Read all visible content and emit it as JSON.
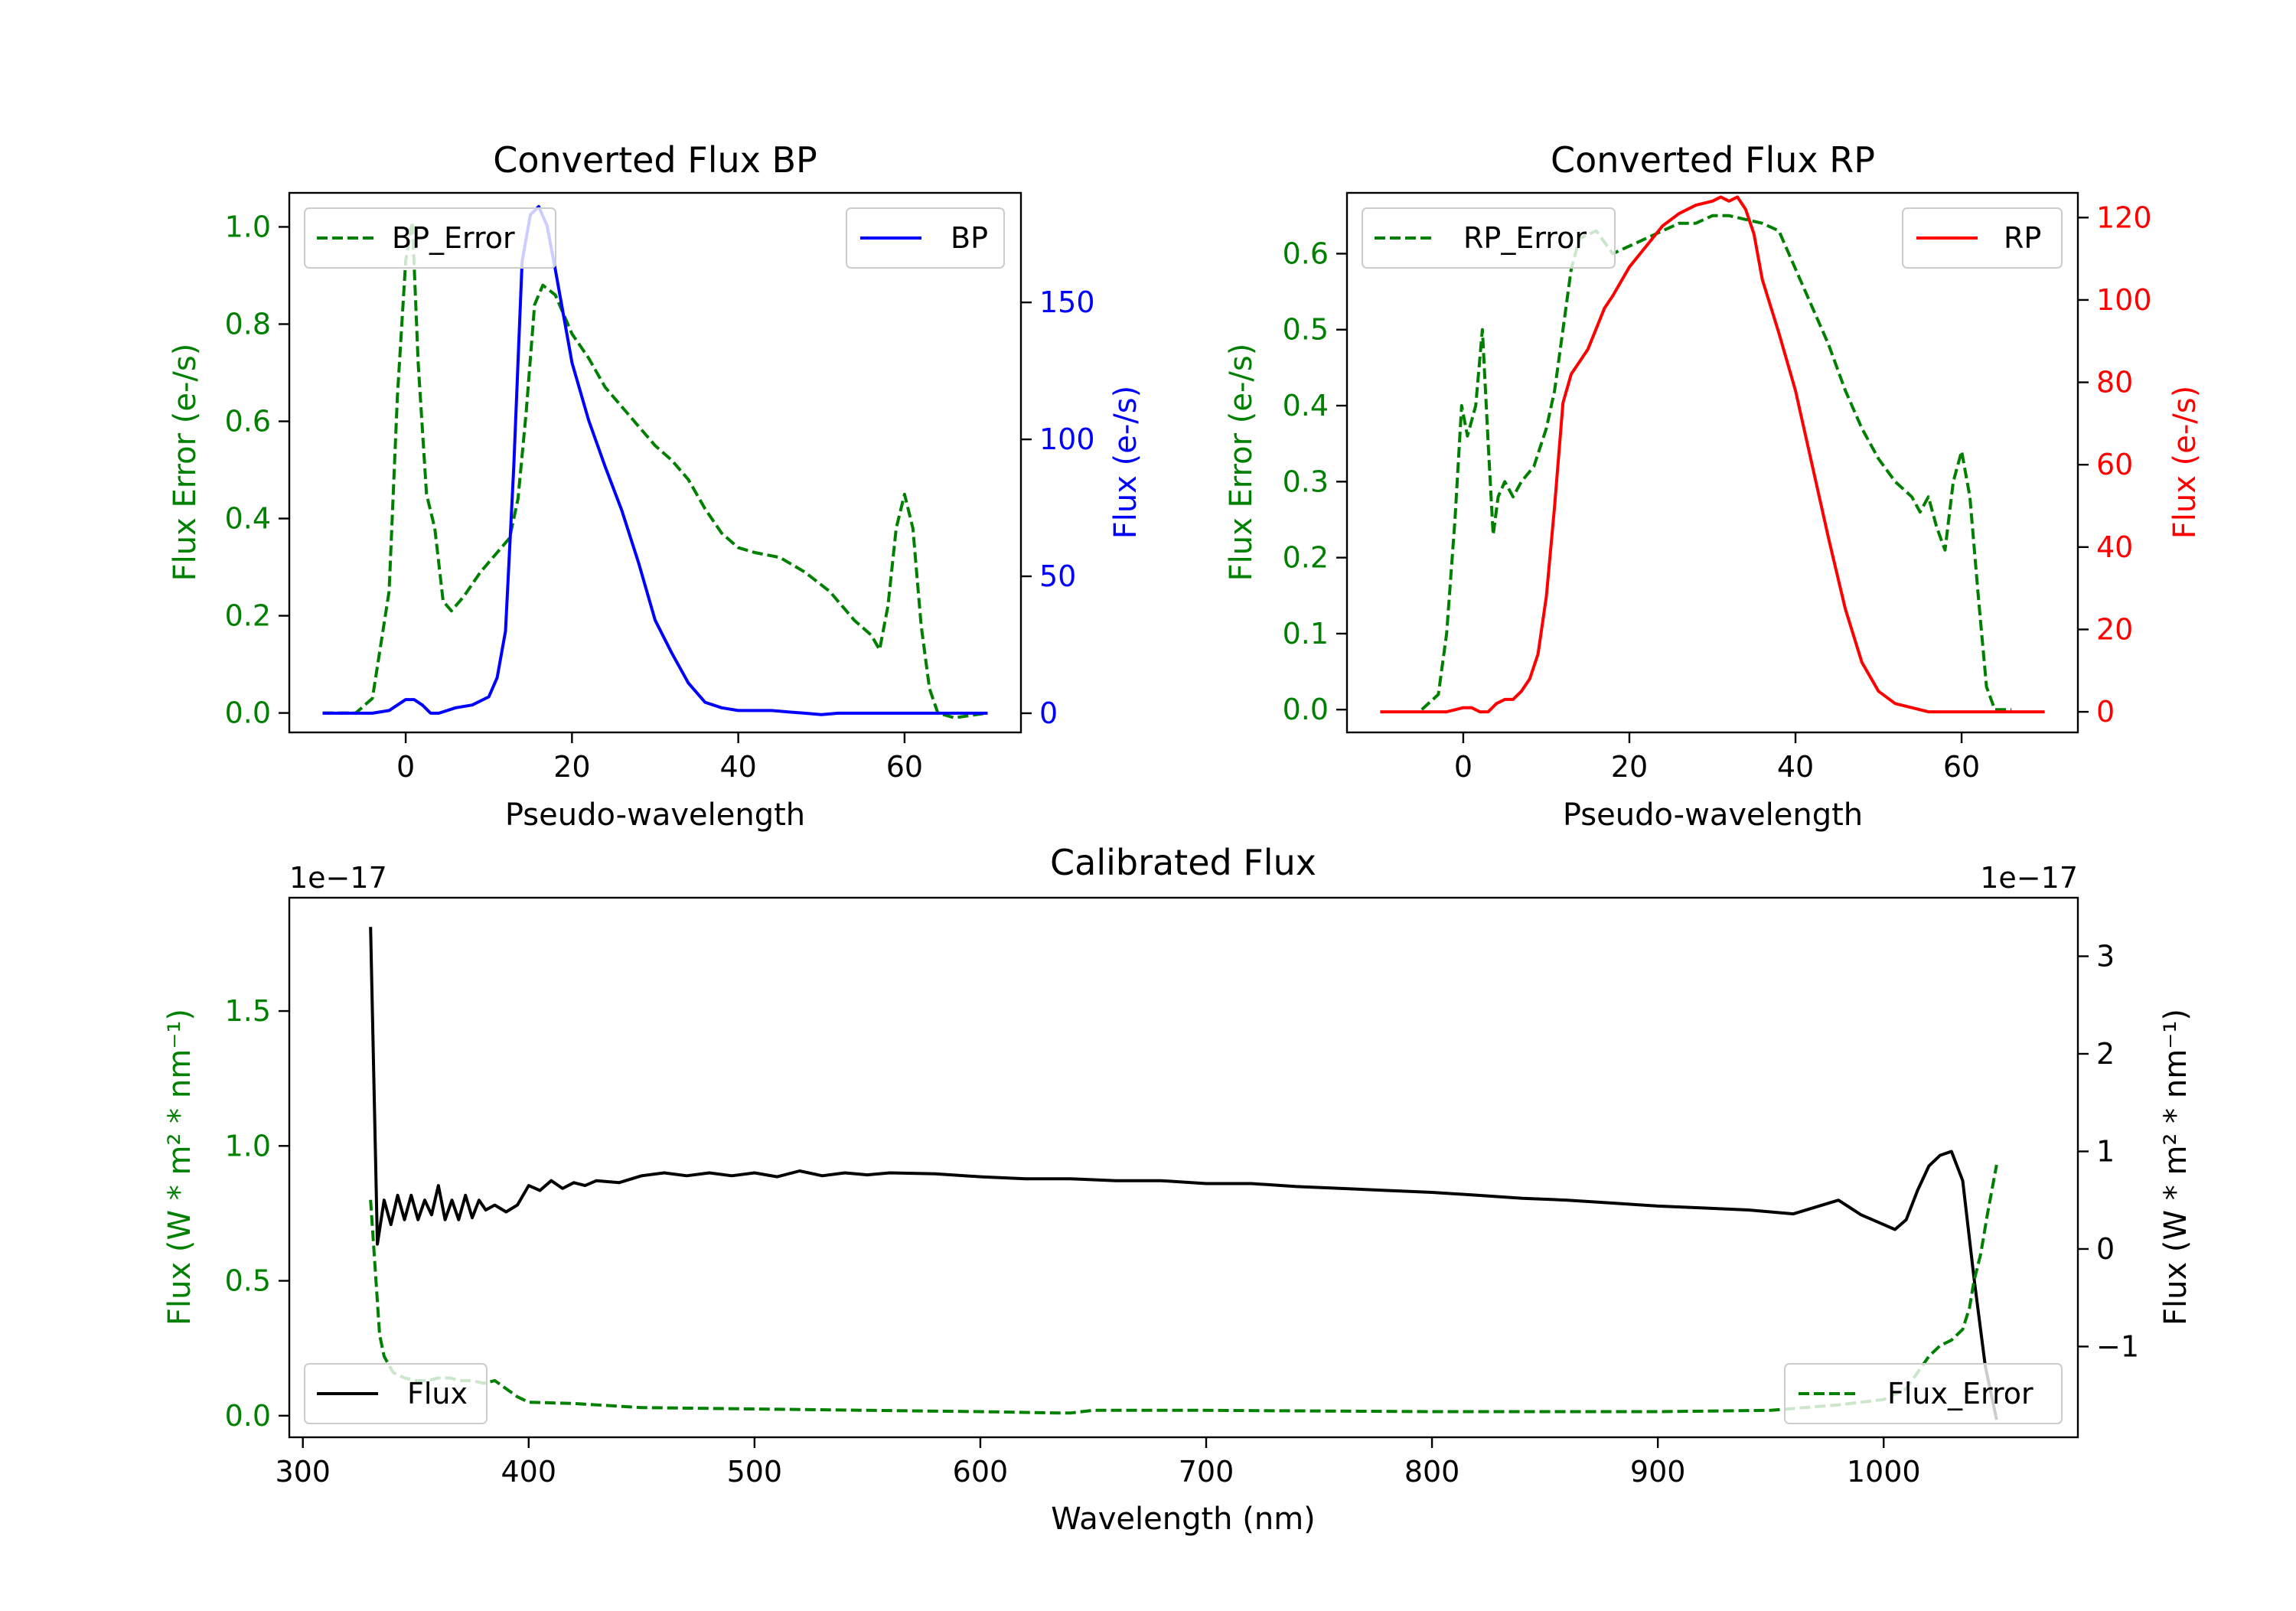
{
  "colors": {
    "green": "#008000",
    "blue": "#0000ff",
    "red": "#ff0000",
    "black": "#000000"
  },
  "chart_data": [
    {
      "type": "line",
      "title": "Converted Flux BP",
      "xlabel": "Pseudo-wavelength",
      "xlim": [
        -14,
        74
      ],
      "xticks": [
        0,
        20,
        40,
        60
      ],
      "left_axis": {
        "label": "Flux Error (e-/s)",
        "color": "green",
        "ylim": [
          -0.04,
          1.07
        ],
        "ticks": [
          0.0,
          0.2,
          0.4,
          0.6,
          0.8,
          1.0
        ]
      },
      "right_axis": {
        "label": "Flux (e-/s)",
        "color": "blue",
        "ylim": [
          -7,
          190
        ],
        "ticks": [
          0,
          50,
          100,
          150
        ]
      },
      "series": [
        {
          "name": "BP_Error",
          "axis": "left",
          "style": "dashed",
          "color": "green",
          "x": [
            -10,
            -6,
            -4,
            -2,
            -1,
            0,
            0.8,
            1.5,
            2.5,
            3.5,
            4.5,
            5.5,
            7,
            9,
            11,
            12.5,
            13.5,
            14.5,
            15.5,
            16.5,
            18,
            20,
            22,
            24,
            26,
            28,
            30,
            32,
            34,
            36,
            38,
            40,
            42,
            45,
            48,
            51,
            54,
            56,
            57,
            58,
            59,
            60,
            61,
            62,
            63,
            64,
            66,
            70
          ],
          "values": [
            0.0,
            0.0,
            0.03,
            0.25,
            0.65,
            0.93,
            1.01,
            0.72,
            0.45,
            0.38,
            0.23,
            0.21,
            0.24,
            0.29,
            0.33,
            0.36,
            0.44,
            0.62,
            0.84,
            0.88,
            0.86,
            0.78,
            0.73,
            0.67,
            0.63,
            0.59,
            0.55,
            0.52,
            0.48,
            0.42,
            0.37,
            0.34,
            0.33,
            0.32,
            0.29,
            0.25,
            0.19,
            0.16,
            0.13,
            0.22,
            0.38,
            0.45,
            0.38,
            0.18,
            0.05,
            0.0,
            -0.01,
            0.0
          ]
        },
        {
          "name": "BP",
          "axis": "right",
          "style": "solid",
          "color": "blue",
          "x": [
            -10,
            -4,
            -2,
            0,
            1,
            2,
            3,
            4,
            6,
            8,
            10,
            11,
            12,
            13,
            14,
            15,
            16,
            17,
            18,
            19,
            20,
            22,
            24,
            26,
            28,
            30,
            32,
            34,
            36,
            38,
            40,
            42,
            44,
            46,
            48,
            50,
            52,
            55,
            58,
            60,
            62,
            66,
            70
          ],
          "values": [
            0,
            0,
            1,
            5,
            5,
            3,
            0,
            0,
            2,
            3,
            6,
            13,
            30,
            90,
            165,
            182,
            185,
            178,
            162,
            145,
            128,
            107,
            90,
            74,
            55,
            34,
            22,
            11,
            4,
            2,
            1,
            1,
            1,
            0.5,
            0,
            -0.5,
            0,
            0,
            0,
            0,
            0,
            0,
            0
          ]
        }
      ],
      "legends": [
        {
          "label": "BP_Error",
          "location": "upper left"
        },
        {
          "label": "BP",
          "location": "upper right"
        }
      ]
    },
    {
      "type": "line",
      "title": "Converted Flux RP",
      "xlabel": "Pseudo-wavelength",
      "xlim": [
        -14,
        74
      ],
      "xticks": [
        0,
        20,
        40,
        60
      ],
      "left_axis": {
        "label": "Flux Error (e-/s)",
        "color": "green",
        "ylim": [
          -0.03,
          0.68
        ],
        "ticks": [
          0.0,
          0.1,
          0.2,
          0.3,
          0.4,
          0.5,
          0.6
        ]
      },
      "right_axis": {
        "label": "Flux (e-/s)",
        "color": "red",
        "ylim": [
          -5,
          126
        ],
        "ticks": [
          0,
          20,
          40,
          60,
          80,
          100,
          120
        ]
      },
      "series": [
        {
          "name": "RP_Error",
          "axis": "left",
          "style": "dashed",
          "color": "green",
          "x": [
            -5,
            -3,
            -2,
            -1,
            -0.2,
            0.5,
            1,
            1.5,
            2.3,
            3,
            3.6,
            4.2,
            5,
            6,
            7,
            8.5,
            10,
            11,
            12,
            13,
            14,
            16,
            18,
            20,
            22,
            24,
            26,
            28,
            30,
            32,
            34,
            36,
            38,
            40,
            42,
            44,
            46,
            48,
            50,
            52,
            54,
            55,
            56,
            57,
            58,
            59,
            60,
            61,
            62,
            63,
            64,
            66
          ],
          "values": [
            0.0,
            0.02,
            0.1,
            0.25,
            0.4,
            0.36,
            0.38,
            0.4,
            0.5,
            0.35,
            0.23,
            0.28,
            0.3,
            0.28,
            0.3,
            0.32,
            0.37,
            0.42,
            0.5,
            0.58,
            0.62,
            0.63,
            0.6,
            0.61,
            0.62,
            0.63,
            0.64,
            0.64,
            0.65,
            0.65,
            0.645,
            0.64,
            0.63,
            0.58,
            0.53,
            0.48,
            0.42,
            0.37,
            0.33,
            0.3,
            0.28,
            0.26,
            0.28,
            0.24,
            0.21,
            0.3,
            0.34,
            0.28,
            0.15,
            0.03,
            0.0,
            0.0
          ]
        },
        {
          "name": "RP",
          "axis": "right",
          "style": "solid",
          "color": "red",
          "x": [
            -10,
            -4,
            -2,
            0,
            1,
            2,
            3,
            4,
            5,
            6,
            7,
            8,
            9,
            10,
            11,
            12,
            13,
            14,
            15,
            16,
            17,
            18,
            20,
            22,
            24,
            26,
            28,
            30,
            31,
            32,
            33,
            34,
            35,
            36,
            38,
            40,
            42,
            44,
            46,
            48,
            50,
            52,
            54,
            56,
            60,
            64,
            70
          ],
          "values": [
            0,
            0,
            0,
            1,
            1,
            0,
            0,
            2,
            3,
            3,
            5,
            8,
            14,
            28,
            50,
            75,
            82,
            85,
            88,
            93,
            98,
            101,
            108,
            113,
            118,
            121,
            123,
            124,
            125,
            124,
            125,
            122,
            116,
            105,
            92,
            78,
            60,
            42,
            25,
            12,
            5,
            2,
            1,
            0,
            0,
            0,
            0
          ]
        }
      ],
      "legends": [
        {
          "label": "RP_Error",
          "location": "upper left"
        },
        {
          "label": "RP",
          "location": "upper right"
        }
      ]
    },
    {
      "type": "line",
      "title": "Calibrated Flux",
      "xlabel": "Wavelength (nm)",
      "xlim": [
        294,
        1086
      ],
      "xticks": [
        300,
        400,
        500,
        600,
        700,
        800,
        900,
        1000
      ],
      "left_axis": {
        "label": "Flux (W * m² * nm⁻¹)",
        "color": "green",
        "ylim": [
          -0.08,
          1.92
        ],
        "ticks": [
          0.0,
          0.5,
          1.0,
          1.5
        ],
        "tick_labels": [
          "0.0",
          "0.5",
          "1.0",
          "1.5"
        ],
        "offset_text": "1e−17"
      },
      "right_axis": {
        "label": "Flux (W * m² * nm⁻¹)",
        "color": "black",
        "ylim": [
          -1.93,
          3.6
        ],
        "ticks": [
          -1,
          0,
          1,
          2,
          3
        ],
        "tick_labels": [
          "−1",
          "0",
          "1",
          "2",
          "3"
        ],
        "offset_text": "1e−17"
      },
      "series": [
        {
          "name": "Flux",
          "axis": "right",
          "style": "solid",
          "color": "black",
          "x": [
            330,
            333,
            336,
            339,
            342,
            345,
            348,
            351,
            354,
            357,
            360,
            363,
            366,
            369,
            372,
            375,
            378,
            381,
            385,
            390,
            395,
            400,
            405,
            410,
            415,
            420,
            425,
            430,
            440,
            450,
            460,
            470,
            480,
            490,
            500,
            510,
            520,
            530,
            540,
            550,
            560,
            580,
            600,
            620,
            640,
            660,
            680,
            700,
            720,
            740,
            760,
            780,
            800,
            820,
            840,
            860,
            880,
            900,
            920,
            940,
            960,
            980,
            990,
            1000,
            1005,
            1010,
            1015,
            1020,
            1025,
            1030,
            1035,
            1040,
            1045,
            1050
          ],
          "values": [
            3.3,
            0.05,
            0.5,
            0.25,
            0.55,
            0.3,
            0.55,
            0.3,
            0.5,
            0.35,
            0.65,
            0.3,
            0.5,
            0.3,
            0.55,
            0.32,
            0.5,
            0.4,
            0.45,
            0.38,
            0.45,
            0.65,
            0.6,
            0.7,
            0.62,
            0.68,
            0.65,
            0.7,
            0.68,
            0.75,
            0.78,
            0.75,
            0.78,
            0.75,
            0.78,
            0.74,
            0.8,
            0.75,
            0.78,
            0.76,
            0.78,
            0.77,
            0.74,
            0.72,
            0.72,
            0.7,
            0.7,
            0.67,
            0.67,
            0.64,
            0.62,
            0.6,
            0.58,
            0.55,
            0.52,
            0.5,
            0.47,
            0.44,
            0.42,
            0.4,
            0.36,
            0.5,
            0.35,
            0.25,
            0.2,
            0.3,
            0.6,
            0.85,
            0.96,
            1.0,
            0.7,
            -0.3,
            -1.2,
            -1.75
          ]
        },
        {
          "name": "Flux_Error",
          "axis": "left",
          "style": "dashed",
          "color": "green",
          "x": [
            330,
            332,
            334,
            336,
            340,
            345,
            350,
            355,
            360,
            365,
            370,
            375,
            380,
            385,
            390,
            395,
            400,
            420,
            450,
            500,
            550,
            600,
            635,
            640,
            650,
            700,
            800,
            900,
            950,
            980,
            1000,
            1010,
            1015,
            1020,
            1025,
            1030,
            1035,
            1038,
            1040,
            1043,
            1046,
            1050
          ],
          "values": [
            0.8,
            0.55,
            0.3,
            0.22,
            0.16,
            0.14,
            0.13,
            0.13,
            0.14,
            0.14,
            0.13,
            0.13,
            0.12,
            0.13,
            0.1,
            0.07,
            0.05,
            0.045,
            0.03,
            0.025,
            0.02,
            0.015,
            0.01,
            0.01,
            0.02,
            0.02,
            0.015,
            0.015,
            0.02,
            0.04,
            0.06,
            0.1,
            0.16,
            0.22,
            0.26,
            0.28,
            0.32,
            0.4,
            0.5,
            0.6,
            0.75,
            0.93
          ]
        }
      ],
      "legends": [
        {
          "label": "Flux",
          "location": "lower left"
        },
        {
          "label": "Flux_Error",
          "location": "lower right"
        }
      ]
    }
  ]
}
